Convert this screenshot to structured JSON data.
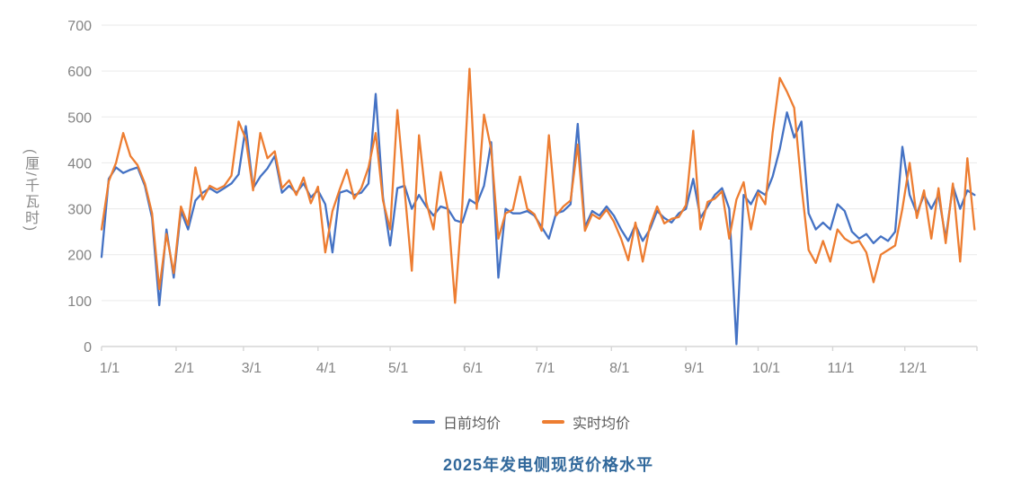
{
  "chart_data": {
    "type": "line",
    "title": "2025年发电侧现货价格水平",
    "ylabel": "(厘/千瓦时)",
    "xlabel": "",
    "ylim": [
      0,
      700
    ],
    "y_tick_step": 100,
    "y_ticks": [
      0,
      100,
      200,
      300,
      400,
      500,
      600,
      700
    ],
    "x_tick_labels": [
      "1/1",
      "2/1",
      "3/1",
      "4/1",
      "5/1",
      "6/1",
      "7/1",
      "8/1",
      "9/1",
      "10/1",
      "11/1",
      "12/1"
    ],
    "month_start_days": [
      0,
      31,
      59,
      90,
      120,
      151,
      181,
      212,
      243,
      273,
      304,
      334
    ],
    "days_total": 364,
    "sample_step_days": 3,
    "grid": "horizontal-only",
    "legend_position": "bottom-center",
    "axis_color": "#d6d6d6",
    "grid_color": "#eaeaea",
    "tick_text_color": "#848484",
    "title_color": "#31689b",
    "series": [
      {
        "name": "日前均价",
        "color": "#4472c4",
        "values": [
          195,
          365,
          390,
          378,
          385,
          390,
          350,
          280,
          90,
          255,
          150,
          295,
          255,
          318,
          335,
          345,
          335,
          345,
          355,
          375,
          480,
          345,
          370,
          388,
          415,
          335,
          350,
          335,
          355,
          325,
          340,
          310,
          205,
          335,
          340,
          330,
          335,
          355,
          550,
          325,
          220,
          345,
          350,
          300,
          330,
          305,
          285,
          305,
          300,
          275,
          270,
          320,
          310,
          350,
          445,
          150,
          300,
          290,
          290,
          295,
          285,
          260,
          235,
          290,
          295,
          310,
          485,
          260,
          295,
          285,
          305,
          285,
          255,
          230,
          265,
          230,
          255,
          295,
          280,
          270,
          290,
          300,
          365,
          280,
          305,
          330,
          345,
          300,
          5,
          330,
          310,
          340,
          330,
          370,
          430,
          510,
          455,
          490,
          290,
          255,
          270,
          255,
          310,
          295,
          250,
          235,
          245,
          225,
          240,
          230,
          250,
          435,
          330,
          290,
          330,
          300,
          330,
          235,
          350,
          300,
          340,
          330
        ]
      },
      {
        "name": "实时均价",
        "color": "#ed7d31",
        "values": [
          255,
          360,
          400,
          465,
          415,
          395,
          355,
          290,
          125,
          245,
          160,
          305,
          265,
          390,
          320,
          350,
          342,
          350,
          372,
          490,
          452,
          340,
          465,
          410,
          425,
          345,
          362,
          330,
          368,
          312,
          348,
          205,
          295,
          342,
          385,
          322,
          345,
          390,
          465,
          318,
          255,
          515,
          340,
          165,
          460,
          315,
          255,
          380,
          298,
          95,
          310,
          605,
          300,
          505,
          430,
          235,
          290,
          298,
          370,
          300,
          288,
          252,
          460,
          285,
          305,
          318,
          440,
          252,
          288,
          278,
          298,
          272,
          235,
          188,
          270,
          185,
          262,
          305,
          268,
          278,
          282,
          308,
          470,
          255,
          315,
          322,
          338,
          235,
          320,
          358,
          255,
          335,
          310,
          465,
          585,
          555,
          520,
          350,
          210,
          182,
          230,
          185,
          255,
          235,
          225,
          230,
          205,
          140,
          200,
          210,
          220,
          300,
          400,
          280,
          340,
          235,
          345,
          225,
          355,
          185,
          410,
          255
        ]
      }
    ]
  }
}
